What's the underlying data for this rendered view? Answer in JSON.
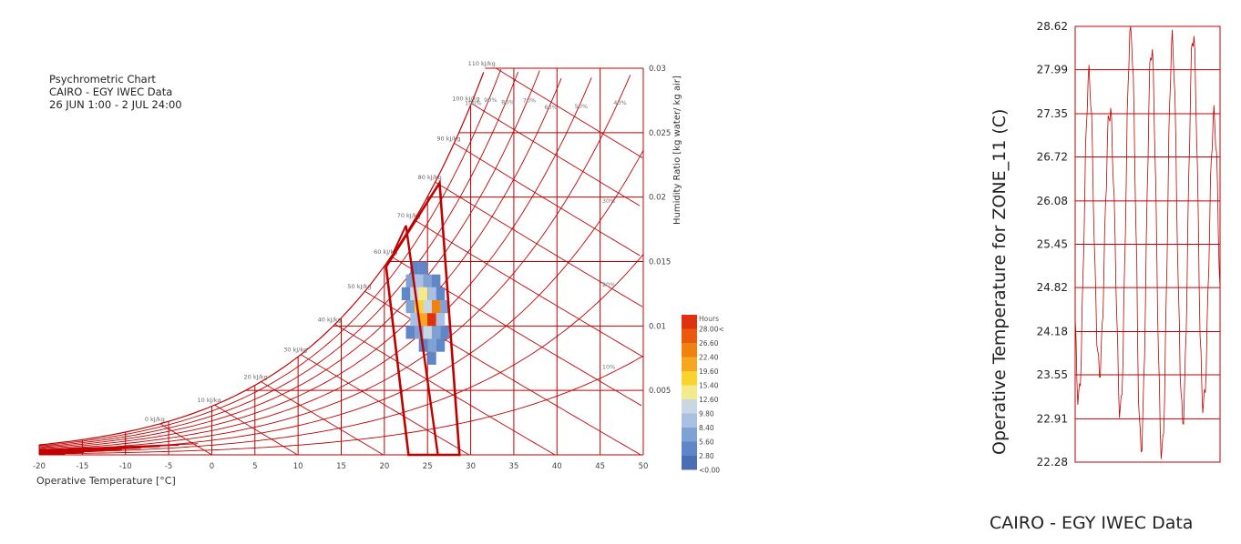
{
  "psychrometric": {
    "title_lines": [
      "Psychrometric Chart",
      "CAIRO - EGY IWEC Data",
      "26 JUN 1:00 - 2 JUL 24:00"
    ],
    "x_axis_label": "Operative Temperature [°C]",
    "y_axis_label": "Humidity Ratio [kg water/ kg air]",
    "legend_title": "Hours",
    "legend_values": [
      "<0.00",
      "2.80",
      "5.60",
      "8.40",
      "9.80",
      "12.60",
      "15.40",
      "19.60",
      "22.40",
      "26.60",
      "28.00<"
    ],
    "legend_colors": [
      "#4a6db5",
      "#5f86c6",
      "#7fa1d4",
      "#a9c0e2",
      "#c9d7e3",
      "#f3ea8b",
      "#f9d42e",
      "#f7a620",
      "#f0820f",
      "#ea5a0c",
      "#e0300e"
    ],
    "chart_color": "#c00000",
    "enthalpy_labels": [
      "0 kJ/kg",
      "10 kJ/kg",
      "20 kJ/kg",
      "30 kJ/kg",
      "40 kJ/kg",
      "50 kJ/kg",
      "60 kJ/kg",
      "70 kJ/kg",
      "80 kJ/kg",
      "90 kJ/kg",
      "100 kJ/kg",
      "110 kJ/kg"
    ],
    "rh_labels": [
      "100%",
      "90%",
      "80%",
      "70%",
      "60%",
      "50%",
      "40%",
      "30%",
      "20%",
      "10%"
    ]
  },
  "chart_data": [
    {
      "type": "heatmap",
      "title": "Psychrometric Chart",
      "subtitle": [
        "CAIRO - EGY IWEC Data",
        "26 JUN 1:00 - 2 JUL 24:00"
      ],
      "xlabel": "Operative Temperature [°C]",
      "ylabel": "Humidity Ratio [kg water/ kg air]",
      "xlim": [
        -20,
        50
      ],
      "ylim": [
        0,
        0.03
      ],
      "x_ticks": [
        -20,
        -15,
        -10,
        -5,
        0,
        5,
        10,
        15,
        20,
        25,
        30,
        35,
        40,
        45,
        50
      ],
      "y_ticks": [
        0.005,
        0.01,
        0.015,
        0.02,
        0.025,
        0.03
      ],
      "comfort_polygon": [
        [
          20.2,
          0.0146
        ],
        [
          22.8,
          0.0
        ],
        [
          28.7,
          0.0
        ],
        [
          26.4,
          0.0211
        ]
      ],
      "inner_polygon": [
        [
          22.5,
          0.0178
        ],
        [
          26.2,
          0.0
        ]
      ],
      "cells_temp_hum_hours": [
        [
          23.5,
          0.0145,
          2.8
        ],
        [
          24.5,
          0.0145,
          2.8
        ],
        [
          23.0,
          0.0135,
          5.6
        ],
        [
          24.0,
          0.0135,
          8.4
        ],
        [
          25.0,
          0.0135,
          5.6
        ],
        [
          26.0,
          0.0135,
          2.8
        ],
        [
          22.5,
          0.0125,
          2.8
        ],
        [
          23.5,
          0.0125,
          9.8
        ],
        [
          24.5,
          0.0125,
          12.6
        ],
        [
          25.5,
          0.0125,
          8.4
        ],
        [
          26.5,
          0.0125,
          2.8
        ],
        [
          23.0,
          0.0115,
          5.6
        ],
        [
          24.0,
          0.0115,
          15.4
        ],
        [
          25.0,
          0.0115,
          9.8
        ],
        [
          26.0,
          0.0115,
          22.4
        ],
        [
          27.0,
          0.0115,
          5.6
        ],
        [
          23.5,
          0.0105,
          8.4
        ],
        [
          24.5,
          0.0105,
          19.6
        ],
        [
          25.5,
          0.0105,
          28.0
        ],
        [
          26.5,
          0.0105,
          8.4
        ],
        [
          23.0,
          0.0095,
          2.8
        ],
        [
          24.0,
          0.0095,
          5.6
        ],
        [
          25.0,
          0.0095,
          9.8
        ],
        [
          26.0,
          0.0095,
          5.6
        ],
        [
          27.0,
          0.0095,
          2.8
        ],
        [
          24.5,
          0.0085,
          2.8
        ],
        [
          25.5,
          0.0085,
          5.6
        ],
        [
          26.5,
          0.0085,
          2.8
        ],
        [
          25.5,
          0.0075,
          2.8
        ]
      ]
    },
    {
      "type": "line",
      "title": "",
      "ylabel": "Operative Temperature for ZONE_11 (C)",
      "y_ticks": [
        22.28,
        22.91,
        23.55,
        24.18,
        24.82,
        25.45,
        26.08,
        26.72,
        27.35,
        27.99,
        28.62
      ],
      "ylim": [
        22.28,
        28.62
      ],
      "x_points": 168,
      "daily_min": [
        23.2,
        23.6,
        23.0,
        22.5,
        22.4,
        22.9,
        23.1
      ],
      "daily_max": [
        27.9,
        27.4,
        28.6,
        28.3,
        28.4,
        28.5,
        27.3
      ],
      "footer": "CAIRO - EGY IWEC Data",
      "color": "#c00000"
    }
  ]
}
